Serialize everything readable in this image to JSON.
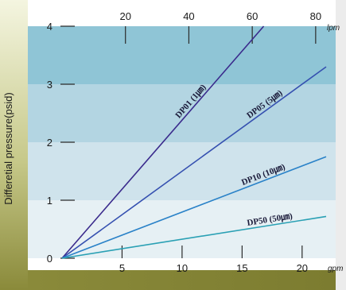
{
  "chart_data": {
    "type": "line",
    "ylabel": "Differetial pressure(psid)",
    "ylim": [
      0,
      4
    ],
    "y_ticks": [
      "0",
      "1",
      "2",
      "3",
      "4"
    ],
    "x_bottom": {
      "unit": "gpm",
      "lim": [
        0,
        22
      ],
      "ticks": [
        "5",
        "10",
        "15",
        "20"
      ]
    },
    "x_top": {
      "unit": "lpm",
      "lim": [
        0,
        83.3
      ],
      "ticks": [
        "20",
        "40",
        "60",
        "80"
      ]
    },
    "series": [
      {
        "name": "DP01 (1㎛)",
        "color": "#3a2a8c",
        "x": [
          0,
          16.8
        ],
        "y": [
          0,
          4.0
        ]
      },
      {
        "name": "DP05 (5㎛)",
        "color": "#3550b0",
        "x": [
          0,
          22
        ],
        "y": [
          0,
          3.3
        ]
      },
      {
        "name": "DP10 (10㎛)",
        "color": "#2a82c8",
        "x": [
          0,
          22
        ],
        "y": [
          0,
          1.75
        ]
      },
      {
        "name": "DP50 (50㎛)",
        "color": "#2aa0b4",
        "x": [
          0,
          22
        ],
        "y": [
          0,
          0.72
        ]
      }
    ],
    "grid": false,
    "background_bands": [
      "#e6f0f4",
      "#cfe3ec",
      "#b3d5e2",
      "#8fc5d6"
    ],
    "frame_color": "#8a8a3a"
  }
}
